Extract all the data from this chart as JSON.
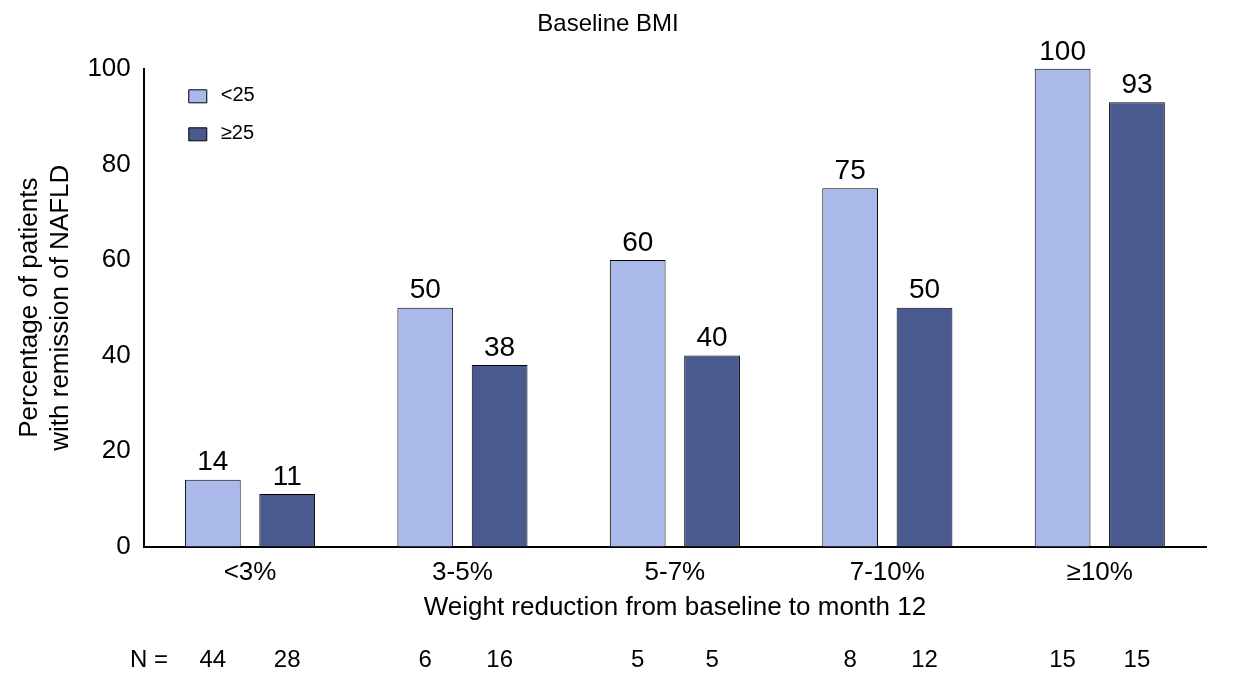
{
  "chart_data": {
    "type": "bar",
    "title": "Baseline BMI",
    "xlabel": "Weight reduction from baseline to month 12",
    "ylabel": "Percentage of patients\nwith remission of NAFLD",
    "categories": [
      "<3%",
      "3-5%",
      "5-7%",
      "7-10%",
      "≥10%"
    ],
    "series": [
      {
        "name": "<25",
        "color": "#aab8ea",
        "values": [
          14,
          50,
          60,
          75,
          100
        ]
      },
      {
        "name": "≥25",
        "color": "#4b5a8e",
        "values": [
          11,
          38,
          40,
          50,
          93
        ]
      }
    ],
    "ylim": [
      0,
      100
    ],
    "yticks": [
      0,
      20,
      40,
      60,
      80,
      100
    ],
    "grid": false,
    "legend": "top left",
    "data_labels": true,
    "annotations": [
      "N =",
      "44",
      "28",
      "6",
      "16",
      "5",
      "5",
      "8",
      "12",
      "15",
      "15"
    ]
  }
}
